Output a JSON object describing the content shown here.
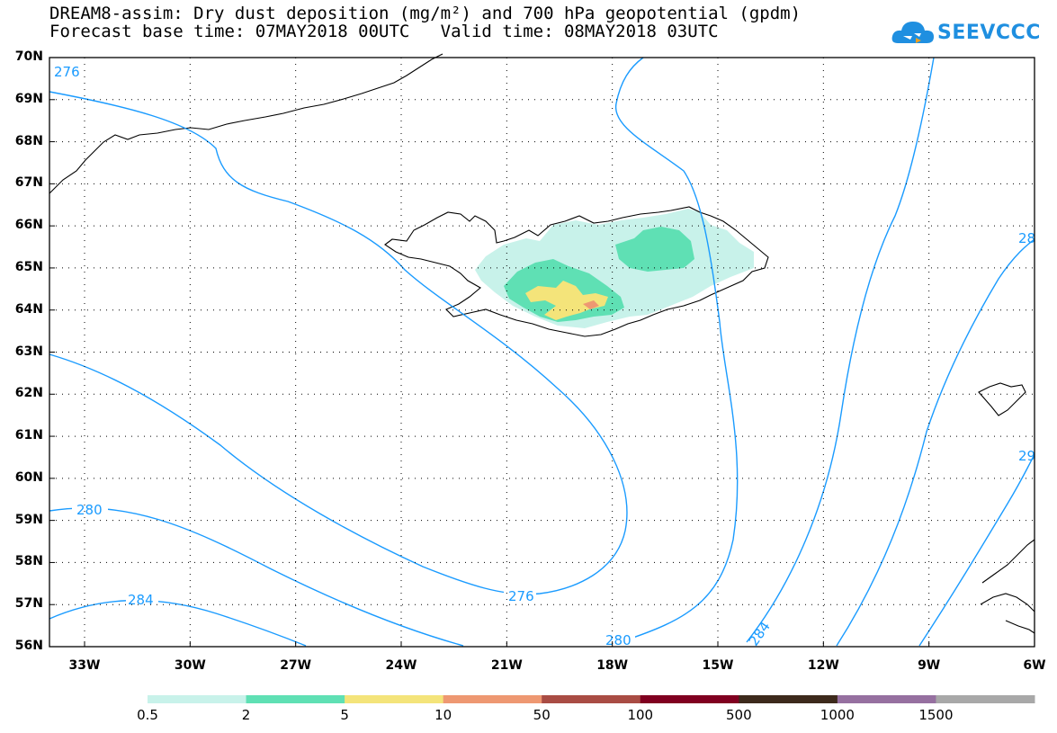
{
  "title_line1": "DREAM8-assim: Dry dust deposition (mg/m²) and 700 hPa geopotential (gpdm)",
  "title_line2": "Forecast base time: 07MAY2018 00UTC   Valid time: 08MAY2018 03UTC",
  "logo_text": "SEEVCCC",
  "map": {
    "lat_labels": [
      "70N",
      "69N",
      "68N",
      "67N",
      "66N",
      "65N",
      "64N",
      "63N",
      "62N",
      "61N",
      "60N",
      "59N",
      "58N",
      "57N",
      "56N"
    ],
    "lon_labels": [
      "33W",
      "30W",
      "27W",
      "24W",
      "21W",
      "18W",
      "15W",
      "12W",
      "9W",
      "6W"
    ],
    "contour_labels": {
      "c276_top": "276",
      "c276_mid": "276",
      "c280_left": "280",
      "c280_bottom": "280",
      "c284_left": "284",
      "c284_bottom": "284",
      "c28_right_upper": "28",
      "c29_right_lower": "29"
    },
    "contour_color": "#1a9bff",
    "coast_color": "#000000"
  },
  "colorbar": {
    "colors": [
      "#c8f2ea",
      "#5fe0b4",
      "#f4e47a",
      "#ee9872",
      "#a94c44",
      "#800020",
      "#3d2a1c",
      "#9670a0",
      "#a8a8a8"
    ],
    "ticks": [
      "0.5",
      "2",
      "5",
      "10",
      "50",
      "100",
      "500",
      "1000",
      "1500"
    ]
  }
}
